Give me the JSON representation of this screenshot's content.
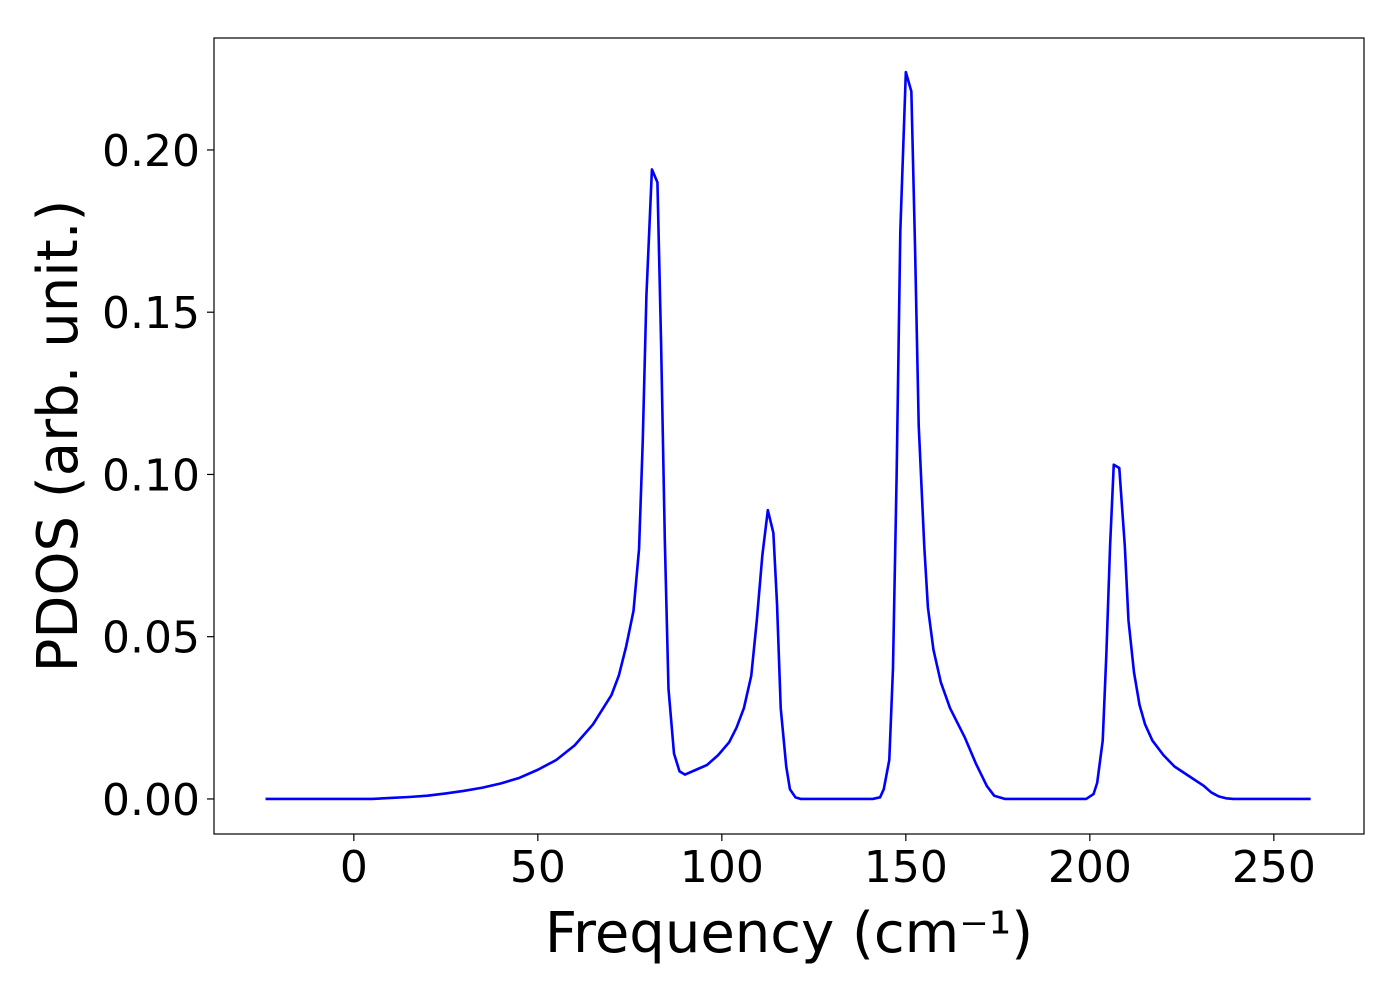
{
  "chart_data": {
    "type": "line",
    "xlabel": "Frequency (cm⁻¹)",
    "ylabel": "PDOS (arb. unit.)",
    "color": "#0000ff",
    "x": [
      -24,
      0,
      5,
      10,
      15,
      20,
      25,
      30,
      35,
      40,
      45,
      50,
      55,
      60,
      65,
      70,
      72,
      74,
      76,
      77.5,
      78.5,
      79.5,
      81,
      82.5,
      83.5,
      84.5,
      85.5,
      87,
      88.5,
      90,
      93,
      96,
      99,
      102,
      104,
      106,
      108,
      109.5,
      111,
      112.5,
      114,
      115,
      116,
      117.5,
      118.5,
      120,
      121.5,
      141,
      143,
      144,
      145.5,
      146.5,
      147.5,
      148.5,
      150,
      151.5,
      152.5,
      153.5,
      155,
      156,
      157.5,
      159.5,
      162,
      166,
      169,
      172,
      174,
      177,
      199,
      201,
      202,
      203.5,
      204.5,
      205.5,
      206.5,
      208,
      209.5,
      210.5,
      212,
      213.5,
      215,
      217,
      220,
      223,
      227,
      231,
      233,
      235,
      237,
      239,
      260
    ],
    "values": [
      0,
      0,
      0,
      0.0003,
      0.0006,
      0.001,
      0.0017,
      0.0025,
      0.0035,
      0.0048,
      0.0065,
      0.009,
      0.012,
      0.0165,
      0.023,
      0.032,
      0.038,
      0.047,
      0.058,
      0.077,
      0.11,
      0.155,
      0.194,
      0.19,
      0.14,
      0.08,
      0.034,
      0.014,
      0.0085,
      0.0075,
      0.009,
      0.0105,
      0.0135,
      0.0175,
      0.022,
      0.028,
      0.038,
      0.055,
      0.075,
      0.089,
      0.082,
      0.06,
      0.028,
      0.01,
      0.003,
      0.0005,
      0,
      0,
      0.0005,
      0.003,
      0.012,
      0.04,
      0.1,
      0.175,
      0.224,
      0.218,
      0.17,
      0.115,
      0.078,
      0.059,
      0.046,
      0.036,
      0.028,
      0.019,
      0.011,
      0.004,
      0.001,
      0,
      0,
      0.0015,
      0.005,
      0.018,
      0.045,
      0.078,
      0.103,
      0.102,
      0.078,
      0.055,
      0.039,
      0.029,
      0.023,
      0.018,
      0.0135,
      0.01,
      0.007,
      0.004,
      0.002,
      0.0008,
      0.0002,
      0,
      0
    ],
    "xlim": [
      -38,
      274.5
    ],
    "ylim": [
      -0.0108,
      0.2345
    ],
    "xticks": [
      0,
      50,
      100,
      150,
      200,
      250
    ],
    "yticks": [
      {
        "value": 0,
        "label": "0.00"
      },
      0.05,
      {
        "value": 0.1,
        "label": "0.10"
      },
      0.15,
      {
        "value": 0.2,
        "label": "0.20"
      }
    ]
  }
}
